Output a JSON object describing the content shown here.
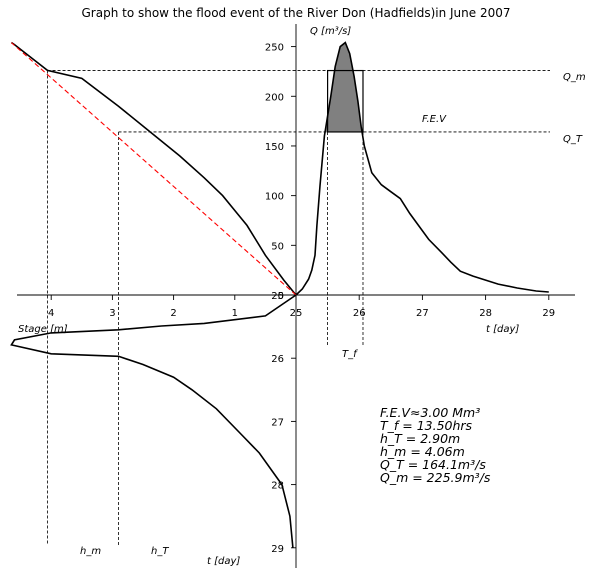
{
  "chart_data": {
    "type": "line",
    "title": "Graph to show the flood event of the River Don (Hadfields)in June 2007",
    "hydrograph": {
      "ylabel": "Q [m³/s]",
      "xlabel": "t [day]",
      "x_ticks": [
        25,
        26,
        27,
        28,
        29
      ],
      "y_ticks": [
        0,
        50,
        100,
        150,
        200,
        250
      ],
      "xlim": [
        24.58,
        29.4
      ],
      "ylim": [
        -27,
        277
      ],
      "points": [
        [
          25.0,
          0
        ],
        [
          25.1,
          6
        ],
        [
          25.2,
          16
        ],
        [
          25.25,
          25
        ],
        [
          25.3,
          40
        ],
        [
          25.33,
          70
        ],
        [
          25.38,
          110
        ],
        [
          25.45,
          160
        ],
        [
          25.55,
          200
        ],
        [
          25.62,
          230
        ],
        [
          25.7,
          250
        ],
        [
          25.78,
          254
        ],
        [
          25.85,
          243
        ],
        [
          25.92,
          220
        ],
        [
          25.98,
          195
        ],
        [
          26.03,
          170
        ],
        [
          26.08,
          150
        ],
        [
          26.2,
          123
        ],
        [
          26.35,
          111
        ],
        [
          26.5,
          104
        ],
        [
          26.65,
          97
        ],
        [
          26.8,
          82
        ],
        [
          26.95,
          69
        ],
        [
          27.1,
          56
        ],
        [
          27.3,
          43
        ],
        [
          27.45,
          33
        ],
        [
          27.6,
          24
        ],
        [
          27.8,
          19
        ],
        [
          28.0,
          15
        ],
        [
          28.2,
          11
        ],
        [
          28.5,
          7
        ],
        [
          28.8,
          4
        ],
        [
          29.0,
          3
        ]
      ]
    },
    "rating_curve": {
      "xlabel": "Stage [m]",
      "x_ticks": [
        1,
        2,
        3,
        4
      ],
      "points": [
        [
          0,
          0
        ],
        [
          0.2,
          15
        ],
        [
          0.5,
          40
        ],
        [
          0.8,
          70
        ],
        [
          1.0,
          85
        ],
        [
          1.2,
          100
        ],
        [
          1.5,
          118
        ],
        [
          1.9,
          140
        ],
        [
          2.3,
          160
        ],
        [
          2.9,
          190
        ],
        [
          3.5,
          218
        ],
        [
          4.06,
          226
        ],
        [
          4.6,
          252
        ],
        [
          4.65,
          254
        ]
      ],
      "linear_fit": [
        [
          0,
          0
        ],
        [
          4.65,
          254
        ]
      ]
    },
    "stage_series": {
      "ylabel": "t [day]",
      "y_ticks": [
        25,
        26,
        27,
        28,
        29
      ],
      "points": [
        [
          0,
          25.0
        ],
        [
          0.5,
          25.33
        ],
        [
          1.5,
          25.45
        ],
        [
          2.2,
          25.49
        ],
        [
          2.9,
          25.55
        ],
        [
          4.0,
          25.6
        ],
        [
          4.6,
          25.71
        ],
        [
          4.65,
          25.79
        ],
        [
          4.0,
          25.93
        ],
        [
          2.9,
          25.97
        ],
        [
          2.5,
          26.1
        ],
        [
          2.0,
          26.3
        ],
        [
          1.7,
          26.5
        ],
        [
          1.3,
          26.8
        ],
        [
          0.9,
          27.2
        ],
        [
          0.6,
          27.5
        ],
        [
          0.23,
          28.0
        ],
        [
          0.1,
          28.5
        ],
        [
          0.05,
          29.0
        ]
      ]
    },
    "fev_label": "F.E.V",
    "tf_label": "T_f",
    "hm_label": "h_m",
    "ht_label": "h_T",
    "Qm": 225.9,
    "QT": 164.1,
    "hm": 4.06,
    "hT": 2.9,
    "Tf_start": 25.5,
    "Tf_end": 26.06,
    "Qm_label": "Q_m",
    "QT_label": "Q_T",
    "annotations": [
      "F.E.V≈3.00 Mm³",
      "T_f = 13.50hrs",
      "h_T = 2.90m",
      "h_m = 4.06m",
      "Q_T = 164.1m³/s",
      "Q_m = 225.9m³/s"
    ],
    "colors": {
      "curve": "#000000",
      "fill": "#808080",
      "linear_fit": "#ff0000",
      "guide": "#000000"
    }
  }
}
